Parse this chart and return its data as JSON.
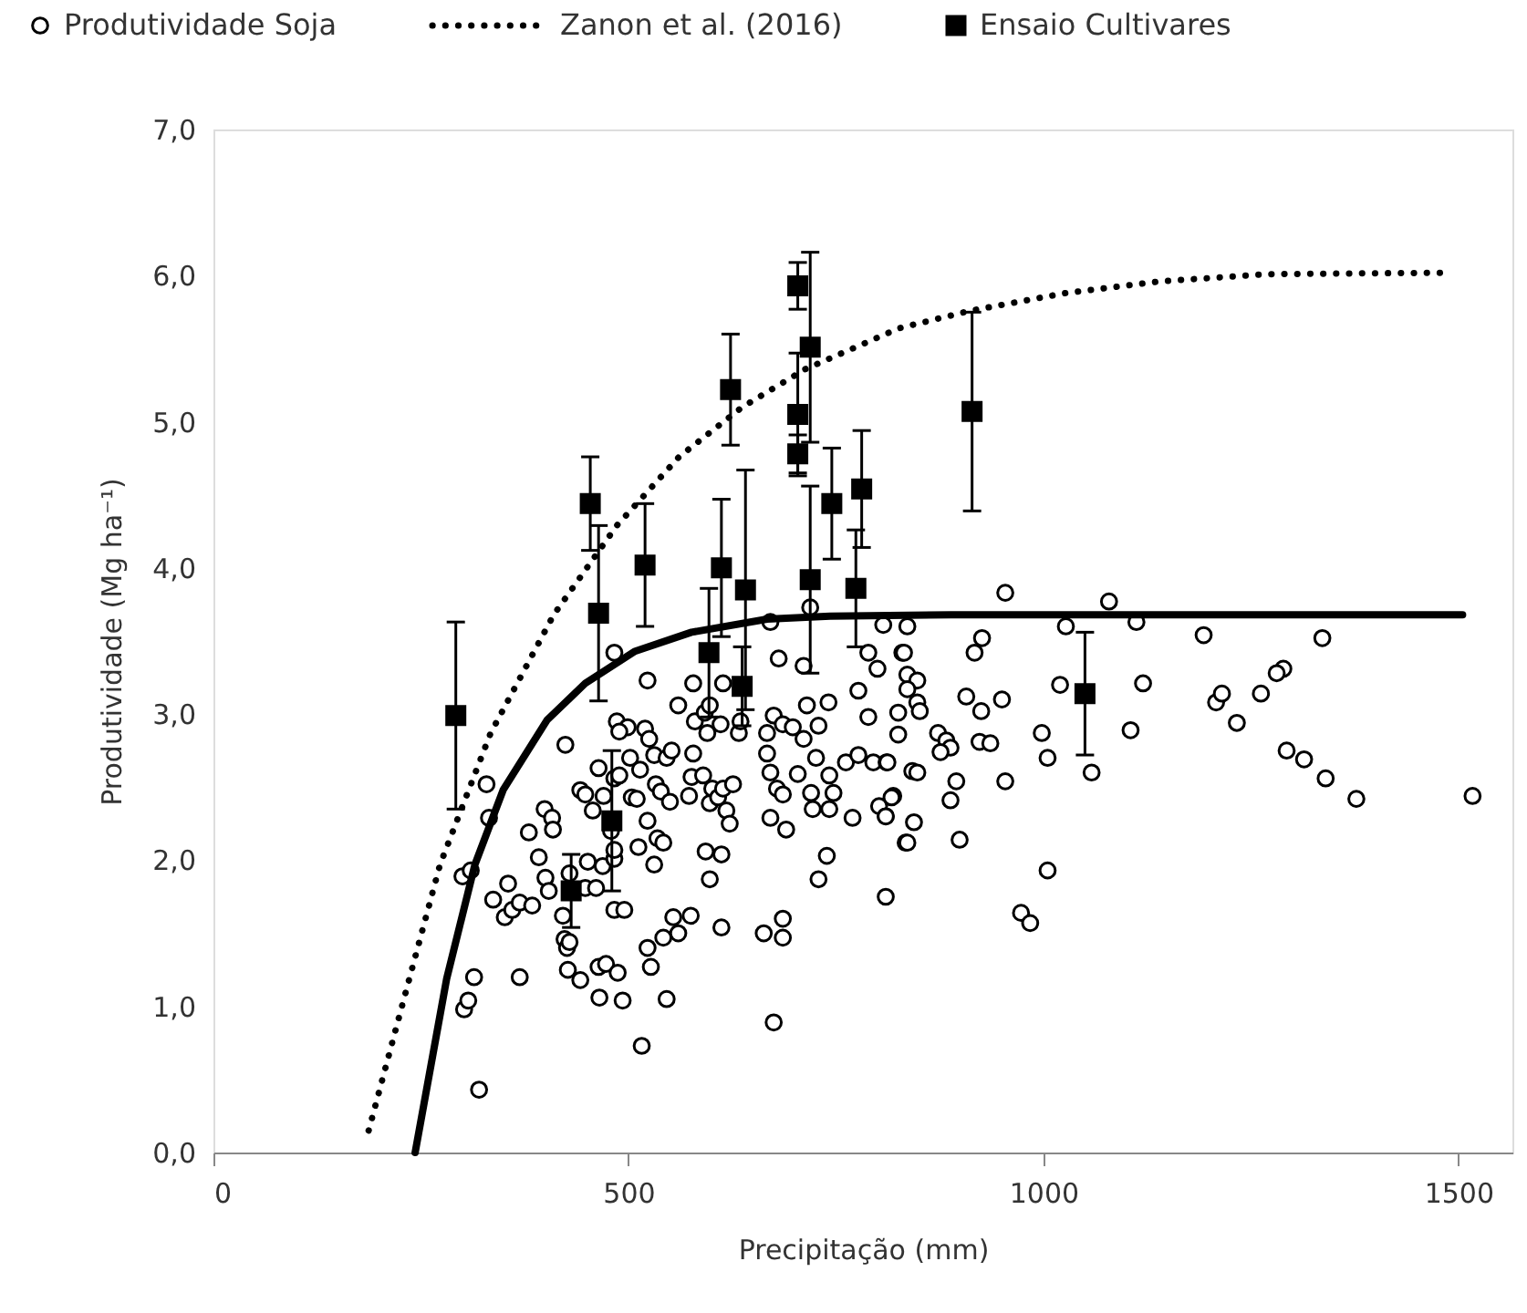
{
  "chart_data": {
    "type": "scatter",
    "xlabel": "Precipitação (mm)",
    "ylabel": "Produtividade (Mg ha⁻¹)",
    "xlim": [
      0,
      1565
    ],
    "ylim": [
      0,
      7
    ],
    "xticks": [
      0,
      500,
      1000,
      1500
    ],
    "yticks": [
      {
        "value": 0,
        "label": "0,0"
      },
      {
        "value": 1,
        "label": "1,0"
      },
      {
        "value": 2,
        "label": "2,0"
      },
      {
        "value": 3,
        "label": "3,0"
      },
      {
        "value": 4,
        "label": "4,0"
      },
      {
        "value": 5,
        "label": "5,0"
      },
      {
        "value": 6,
        "label": "6,0"
      },
      {
        "value": 7,
        "label": "7,0"
      }
    ],
    "legend": "top",
    "series": [
      {
        "name": "Produtividade Soja",
        "marker": "circle",
        "color": "#000000",
        "x": [
          320,
          302,
          307,
          314,
          369,
          300,
          310,
          329,
          332,
          337,
          355,
          351,
          360,
          369,
          384,
          380,
          392,
          399,
          408,
          409,
          400,
          404,
          424,
          421,
          423,
          426,
          429,
          427,
          442,
          429,
          448,
          451,
          461,
          469,
          464,
          465,
          473,
          487,
          493,
          483,
          495,
          483,
          483,
          479,
          442,
          448,
          457,
          470,
          464,
          483,
          489,
          486,
          483,
          499,
          489,
          502,
          504,
          510,
          514,
          520,
          525,
          531,
          523,
          533,
          539,
          523,
          535,
          542,
          512,
          531,
          523,
          527,
          516,
          546,
          542,
          560,
          554,
          575,
          550,
          546,
          552,
          560,
          573,
          576,
          578,
          580,
          578,
          590,
          592,
          598,
          595,
          601,
          598,
          608,
          614,
          618,
          622,
          626,
          611,
          614,
          633,
          635,
          593,
          612,
          598,
          612,
          663,
          686,
          686,
          675,
          671,
          681,
          675,
          667,
          667,
          671,
          679,
          686,
          671,
          690,
          686,
          698,
          711,
          704,
          711,
          715,
          719,
          729,
          741,
          726,
          720,
          722,
          742,
          742,
          747,
          739,
          729,
          762,
          770,
          777,
          789,
          800,
          777,
          789,
          795,
          811,
          802,
          810,
          819,
          810,
          807,
          834,
          830,
          954,
          1079,
          836,
          1027,
          1112,
          1193,
          926,
          917,
          832,
          836,
          848,
          836,
          1020,
          1120,
          907,
          950,
          925,
          848,
          851,
          825,
          1208,
          1215,
          1262,
          1233,
          825,
          873,
          883,
          888,
          876,
          923,
          936,
          998,
          1005,
          1105,
          812,
          842,
          848,
          895,
          954,
          1058,
          817,
          888,
          810,
          844,
          836,
          899,
          1005,
          973,
          984,
          1336,
          1289,
          1281,
          1293,
          1314,
          1340,
          1377,
          1517
        ],
        "values": [
          0.43,
          0.98,
          1.04,
          1.2,
          1.2,
          1.89,
          1.93,
          2.52,
          2.29,
          1.73,
          1.84,
          1.61,
          1.66,
          1.71,
          1.69,
          2.19,
          2.02,
          2.35,
          2.29,
          2.21,
          1.88,
          1.79,
          2.79,
          1.62,
          1.46,
          1.4,
          1.44,
          1.25,
          1.18,
          1.91,
          1.81,
          1.99,
          1.81,
          1.96,
          1.27,
          1.06,
          1.29,
          1.23,
          1.04,
          1.66,
          1.66,
          2.01,
          2.07,
          2.2,
          2.48,
          2.45,
          2.34,
          2.44,
          2.63,
          2.56,
          2.58,
          2.95,
          3.42,
          2.91,
          2.88,
          2.7,
          2.43,
          2.42,
          2.62,
          2.9,
          2.83,
          2.72,
          3.23,
          2.52,
          2.47,
          2.27,
          2.15,
          2.12,
          2.09,
          1.97,
          1.4,
          1.27,
          0.73,
          1.05,
          1.47,
          1.5,
          1.61,
          1.62,
          2.4,
          2.7,
          2.75,
          3.06,
          2.44,
          2.57,
          2.73,
          2.95,
          3.21,
          2.58,
          3.01,
          3.06,
          2.87,
          2.49,
          2.39,
          2.43,
          2.49,
          2.34,
          2.25,
          2.52,
          2.93,
          3.21,
          2.87,
          2.95,
          2.06,
          2.04,
          1.87,
          1.54,
          1.5,
          1.6,
          1.47,
          0.89,
          3.63,
          3.38,
          2.99,
          2.87,
          2.73,
          2.6,
          2.49,
          2.45,
          2.29,
          2.21,
          2.93,
          2.91,
          2.83,
          2.59,
          3.33,
          3.06,
          3.73,
          2.92,
          3.08,
          2.7,
          2.46,
          2.35,
          2.58,
          2.35,
          2.46,
          2.03,
          1.87,
          2.67,
          2.29,
          2.72,
          3.42,
          3.31,
          3.16,
          2.98,
          2.67,
          2.67,
          2.37,
          2.3,
          2.44,
          1.75,
          3.61,
          2.12,
          3.42,
          3.83,
          3.77,
          3.6,
          3.6,
          3.63,
          3.54,
          3.52,
          3.42,
          3.42,
          3.27,
          3.23,
          3.17,
          3.2,
          3.21,
          3.12,
          3.1,
          3.02,
          3.08,
          3.02,
          3.01,
          3.08,
          3.14,
          3.14,
          2.94,
          2.86,
          2.87,
          2.82,
          2.77,
          2.74,
          2.81,
          2.8,
          2.87,
          2.7,
          2.89,
          2.67,
          2.61,
          2.6,
          2.54,
          2.54,
          2.6,
          2.43,
          2.41,
          2.3,
          2.26,
          2.12,
          2.14,
          1.93,
          1.64,
          1.57,
          3.52,
          3.31,
          3.28,
          2.75,
          2.69,
          2.56,
          2.42,
          2.44
        ]
      },
      {
        "name": "Zanon et al. (2016)",
        "type": "line",
        "marker": "none",
        "line_style": "dotted",
        "color": "#000000",
        "x": [
          187,
          228,
          273,
          334,
          410,
          486,
          561,
          637,
          713,
          826,
          912,
          1026,
          1140,
          1268,
          1490
        ],
        "values": [
          0.15,
          1.02,
          1.97,
          2.87,
          3.68,
          4.29,
          4.76,
          5.1,
          5.36,
          5.64,
          5.76,
          5.88,
          5.96,
          6.01,
          6.02
        ]
      },
      {
        "name": "Ensaio Cultivares",
        "marker": "square",
        "color": "#000000",
        "x": [
          292,
          431,
          454,
          464,
          480,
          520,
          597,
          612,
          623,
          641,
          637,
          704,
          719,
          704,
          704,
          719,
          745,
          781,
          774,
          914,
          1050
        ],
        "values": [
          2.99,
          1.79,
          4.44,
          3.69,
          2.27,
          4.02,
          3.42,
          4.0,
          5.22,
          3.85,
          3.19,
          5.93,
          5.51,
          5.05,
          4.78,
          3.92,
          4.44,
          4.54,
          3.86,
          5.07,
          3.14
        ],
        "errors": [
          0.64,
          0.25,
          0.32,
          0.6,
          0.48,
          0.42,
          0.44,
          0.47,
          0.38,
          0.82,
          0.27,
          0.16,
          0.65,
          0.42,
          0.13,
          0.64,
          0.38,
          0.4,
          0.4,
          0.68,
          0.42
        ]
      },
      {
        "type": "line",
        "marker": "none",
        "line_style": "solid",
        "color": "#000000",
        "x": [
          243,
          281,
          315,
          349,
          402,
          448,
          508,
          576,
          667,
          743,
          889,
          1505
        ],
        "values": [
          0.0,
          1.19,
          1.97,
          2.48,
          2.96,
          3.21,
          3.43,
          3.56,
          3.65,
          3.67,
          3.68,
          3.68
        ]
      }
    ]
  }
}
